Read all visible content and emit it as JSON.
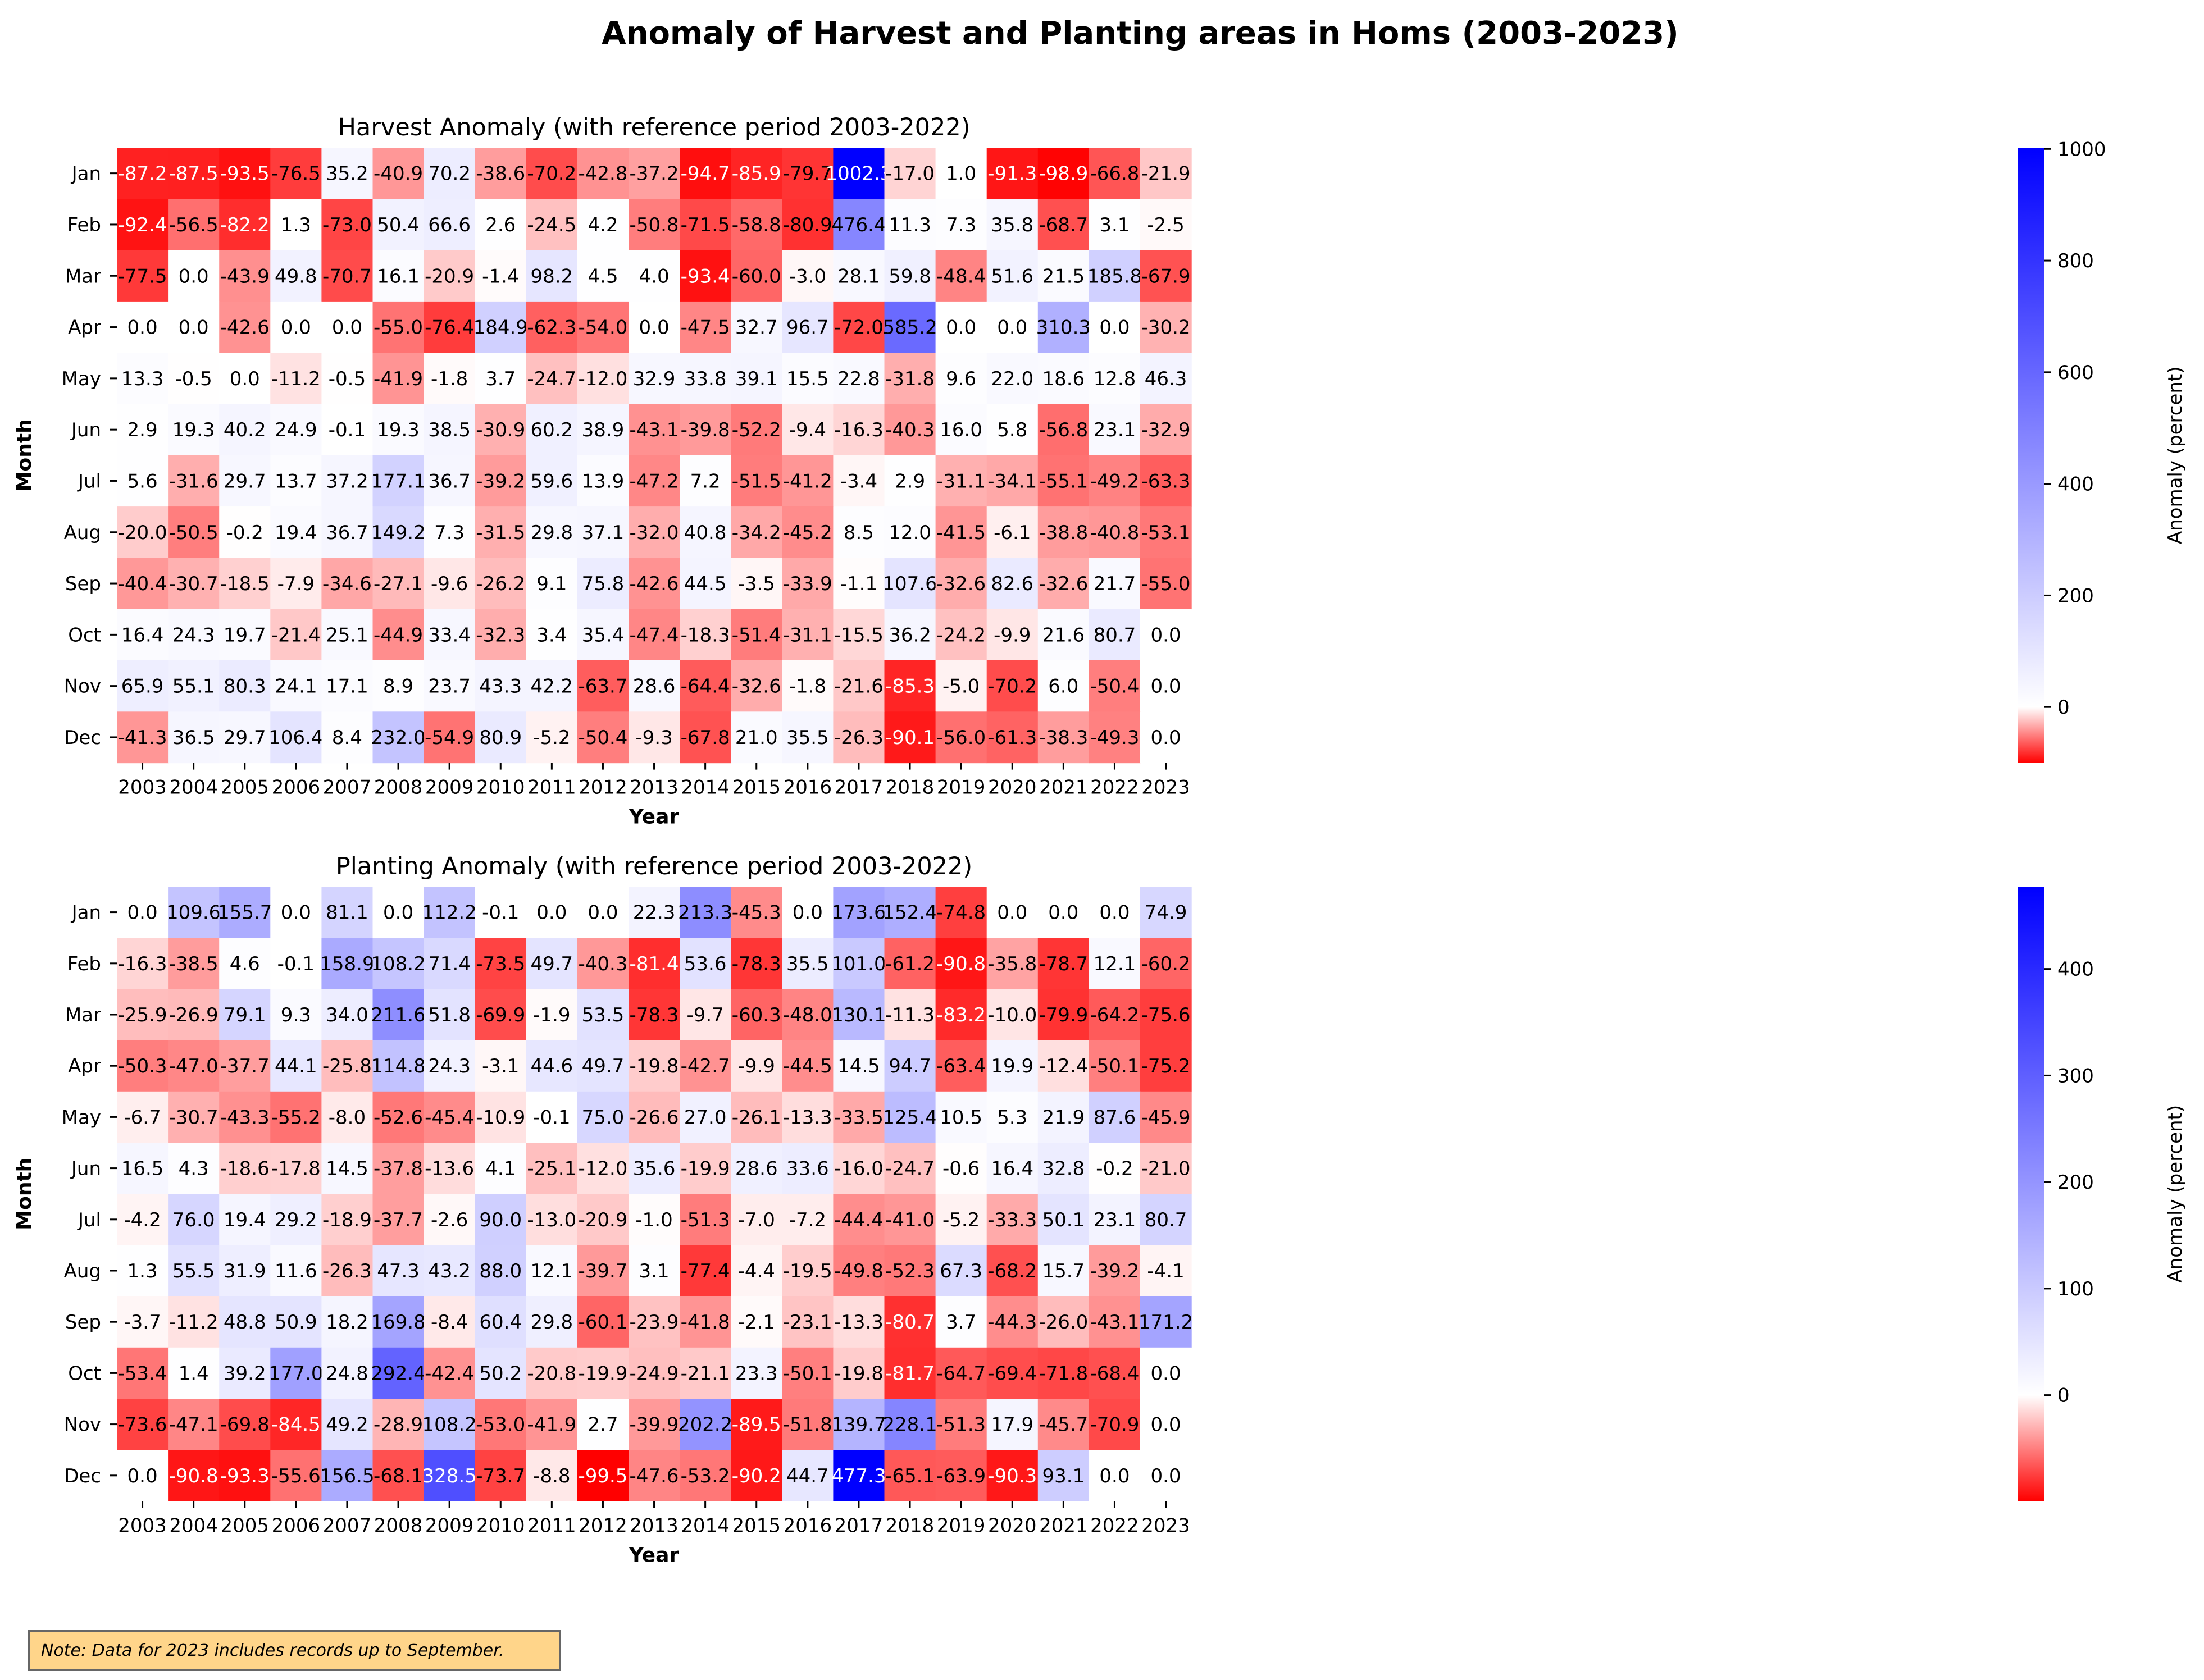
{
  "title": "Anomaly of Harvest and Planting areas in Homs (2003-2023)",
  "note": "Note: Data for 2023 includes records up to September.",
  "colors": {
    "negative": "#ff0000",
    "zero": "#ffffff",
    "positive": "#0000ff",
    "note_background": "#ffd58a"
  },
  "chart_data": [
    {
      "type": "heatmap",
      "title": "Harvest Anomaly (with reference period 2003-2022)",
      "xlabel": "Year",
      "ylabel": "Month",
      "colorbar_label": "Anomaly (percent)",
      "colorbar_range": [
        -100,
        1002.3
      ],
      "colorbar_ticks": [
        0,
        200,
        400,
        600,
        800,
        1000
      ],
      "x": [
        "2003",
        "2004",
        "2005",
        "2006",
        "2007",
        "2008",
        "2009",
        "2010",
        "2011",
        "2012",
        "2013",
        "2014",
        "2015",
        "2016",
        "2017",
        "2018",
        "2019",
        "2020",
        "2021",
        "2022",
        "2023"
      ],
      "y": [
        "Jan",
        "Feb",
        "Mar",
        "Apr",
        "May",
        "Jun",
        "Jul",
        "Aug",
        "Sep",
        "Oct",
        "Nov",
        "Dec"
      ],
      "values": [
        [
          -87.2,
          -87.5,
          -93.5,
          -76.5,
          35.2,
          -40.9,
          70.2,
          -38.6,
          -70.2,
          -42.8,
          -37.2,
          -94.7,
          -85.9,
          -79.7,
          1002.3,
          -17.0,
          1.0,
          -91.3,
          -98.9,
          -66.8,
          -21.9
        ],
        [
          -92.4,
          -56.5,
          -82.2,
          1.3,
          -73.0,
          50.4,
          66.6,
          2.6,
          -24.5,
          4.2,
          -50.8,
          -71.5,
          -58.8,
          -80.9,
          476.4,
          11.3,
          7.3,
          35.8,
          -68.7,
          3.1,
          -2.5
        ],
        [
          -77.5,
          0.0,
          -43.9,
          49.8,
          -70.7,
          16.1,
          -20.9,
          -1.4,
          98.2,
          4.5,
          4.0,
          -93.4,
          -60.0,
          -3.0,
          28.1,
          59.8,
          -48.4,
          51.6,
          21.5,
          185.8,
          -67.9
        ],
        [
          0.0,
          0.0,
          -42.6,
          0.0,
          0.0,
          -55.0,
          -76.4,
          184.9,
          -62.3,
          -54.0,
          0.0,
          -47.5,
          32.7,
          96.7,
          -72.0,
          585.2,
          0.0,
          0.0,
          310.3,
          0.0,
          -30.2
        ],
        [
          13.3,
          -0.5,
          0.0,
          -11.2,
          -0.5,
          -41.9,
          -1.8,
          3.7,
          -24.7,
          -12.0,
          32.9,
          33.8,
          39.1,
          15.5,
          22.8,
          -31.8,
          9.6,
          22.0,
          18.6,
          12.8,
          46.3
        ],
        [
          2.9,
          19.3,
          40.2,
          24.9,
          -0.1,
          19.3,
          38.5,
          -30.9,
          60.2,
          38.9,
          -43.1,
          -39.8,
          -52.2,
          -9.4,
          -16.3,
          -40.3,
          16.0,
          5.8,
          -56.8,
          23.1,
          -32.9
        ],
        [
          5.6,
          -31.6,
          29.7,
          13.7,
          37.2,
          177.1,
          36.7,
          -39.2,
          59.6,
          13.9,
          -47.2,
          7.2,
          -51.5,
          -41.2,
          -3.4,
          2.9,
          -31.1,
          -34.1,
          -55.1,
          -49.2,
          -63.3
        ],
        [
          -20.0,
          -50.5,
          -0.2,
          19.4,
          36.7,
          149.2,
          7.3,
          -31.5,
          29.8,
          37.1,
          -32.0,
          40.8,
          -34.2,
          -45.2,
          8.5,
          12.0,
          -41.5,
          -6.1,
          -38.8,
          -40.8,
          -53.1
        ],
        [
          -40.4,
          -30.7,
          -18.5,
          -7.9,
          -34.6,
          -27.1,
          -9.6,
          -26.2,
          9.1,
          75.8,
          -42.6,
          44.5,
          -3.5,
          -33.9,
          -1.1,
          107.6,
          -32.6,
          82.6,
          -32.6,
          21.7,
          -55.0
        ],
        [
          16.4,
          24.3,
          19.7,
          -21.4,
          25.1,
          -44.9,
          33.4,
          -32.3,
          3.4,
          35.4,
          -47.4,
          -18.3,
          -51.4,
          -31.1,
          -15.5,
          36.2,
          -24.2,
          -9.9,
          21.6,
          80.7,
          0.0
        ],
        [
          65.9,
          55.1,
          80.3,
          24.1,
          17.1,
          8.9,
          23.7,
          43.3,
          42.2,
          -63.7,
          28.6,
          -64.4,
          -32.6,
          -1.8,
          -21.6,
          -85.3,
          -5.0,
          -70.2,
          6.0,
          -50.4,
          0.0
        ],
        [
          -41.3,
          36.5,
          29.7,
          106.4,
          8.4,
          232.0,
          -54.9,
          80.9,
          -5.2,
          -50.4,
          -9.3,
          -67.8,
          21.0,
          35.5,
          -26.3,
          -90.1,
          -56.0,
          -61.3,
          -38.3,
          -49.3,
          0.0
        ]
      ]
    },
    {
      "type": "heatmap",
      "title": "Planting Anomaly (with reference period 2003-2022)",
      "xlabel": "Year",
      "ylabel": "Month",
      "colorbar_label": "Anomaly (percent)",
      "colorbar_range": [
        -99.5,
        477.3
      ],
      "colorbar_ticks": [
        0,
        100,
        200,
        300,
        400
      ],
      "x": [
        "2003",
        "2004",
        "2005",
        "2006",
        "2007",
        "2008",
        "2009",
        "2010",
        "2011",
        "2012",
        "2013",
        "2014",
        "2015",
        "2016",
        "2017",
        "2018",
        "2019",
        "2020",
        "2021",
        "2022",
        "2023"
      ],
      "y": [
        "Jan",
        "Feb",
        "Mar",
        "Apr",
        "May",
        "Jun",
        "Jul",
        "Aug",
        "Sep",
        "Oct",
        "Nov",
        "Dec"
      ],
      "values": [
        [
          0.0,
          109.6,
          155.7,
          0.0,
          81.1,
          0.0,
          112.2,
          -0.1,
          0.0,
          0.0,
          22.3,
          213.3,
          -45.3,
          0.0,
          173.6,
          152.4,
          -74.8,
          0.0,
          0.0,
          0.0,
          74.9
        ],
        [
          -16.3,
          -38.5,
          4.6,
          -0.1,
          158.9,
          108.2,
          71.4,
          -73.5,
          49.7,
          -40.3,
          -81.4,
          53.6,
          -78.3,
          35.5,
          101.0,
          -61.2,
          -90.8,
          -35.8,
          -78.7,
          12.1,
          -60.2
        ],
        [
          -25.9,
          -26.9,
          79.1,
          9.3,
          34.0,
          211.6,
          51.8,
          -69.9,
          -1.9,
          53.5,
          -78.3,
          -9.7,
          -60.3,
          -48.0,
          130.1,
          -11.3,
          -83.2,
          -10.0,
          -79.9,
          -64.2,
          -75.6
        ],
        [
          -50.3,
          -47.0,
          -37.7,
          44.1,
          -25.8,
          114.8,
          24.3,
          -3.1,
          44.6,
          49.7,
          -19.8,
          -42.7,
          -9.9,
          -44.5,
          14.5,
          94.7,
          -63.4,
          19.9,
          -12.4,
          -50.1,
          -75.2
        ],
        [
          -6.7,
          -30.7,
          -43.3,
          -55.2,
          -8.0,
          -52.6,
          -45.4,
          -10.9,
          -0.1,
          75.0,
          -26.6,
          27.0,
          -26.1,
          -13.3,
          -33.5,
          125.4,
          10.5,
          5.3,
          21.9,
          87.6,
          -45.9
        ],
        [
          16.5,
          4.3,
          -18.6,
          -17.8,
          14.5,
          -37.8,
          -13.6,
          4.1,
          -25.1,
          -12.0,
          35.6,
          -19.9,
          28.6,
          33.6,
          -16.0,
          -24.7,
          -0.6,
          16.4,
          32.8,
          -0.2,
          -21.0
        ],
        [
          -4.2,
          76.0,
          19.4,
          29.2,
          -18.9,
          -37.7,
          -2.6,
          90.0,
          -13.0,
          -20.9,
          -1.0,
          -51.3,
          -7.0,
          -7.2,
          -44.4,
          -41.0,
          -5.2,
          -33.3,
          50.1,
          23.1,
          80.7
        ],
        [
          1.3,
          55.5,
          31.9,
          11.6,
          -26.3,
          47.3,
          43.2,
          88.0,
          12.1,
          -39.7,
          3.1,
          -77.4,
          -4.4,
          -19.5,
          -49.8,
          -52.3,
          67.3,
          -68.2,
          15.7,
          -39.2,
          -4.1
        ],
        [
          -3.7,
          -11.2,
          48.8,
          50.9,
          18.2,
          169.8,
          -8.4,
          60.4,
          29.8,
          -60.1,
          -23.9,
          -41.8,
          -2.1,
          -23.1,
          -13.3,
          -80.7,
          3.7,
          -44.3,
          -26.0,
          -43.1,
          171.2
        ],
        [
          -53.4,
          1.4,
          39.2,
          177.0,
          24.8,
          292.4,
          -42.4,
          50.2,
          -20.8,
          -19.9,
          -24.9,
          -21.1,
          23.3,
          -50.1,
          -19.8,
          -81.7,
          -64.7,
          -69.4,
          -71.8,
          -68.4,
          0.0
        ],
        [
          -73.6,
          -47.1,
          -69.8,
          -84.5,
          49.2,
          -28.9,
          108.2,
          -53.0,
          -41.9,
          2.7,
          -39.9,
          202.2,
          -89.5,
          -51.8,
          139.7,
          228.1,
          -51.3,
          17.9,
          -45.7,
          -70.9,
          0.0
        ],
        [
          0.0,
          -90.8,
          -93.3,
          -55.6,
          156.5,
          -68.1,
          328.5,
          -73.7,
          -8.8,
          -99.5,
          -47.6,
          -53.2,
          -90.2,
          44.7,
          477.3,
          -65.1,
          -63.9,
          -90.3,
          93.1,
          0.0,
          0.0
        ]
      ]
    }
  ]
}
